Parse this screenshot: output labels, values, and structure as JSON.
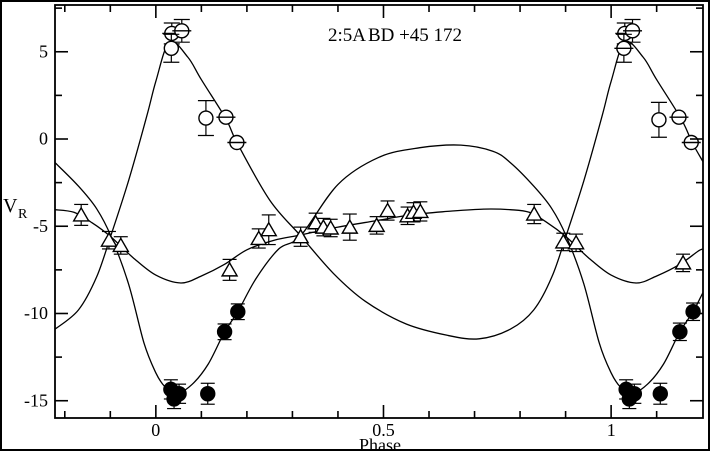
{
  "window": {
    "background": "#ffffff",
    "border_color": "#000000"
  },
  "chart_data": {
    "type": "scatter",
    "title_system": "2:5A",
    "title_star": "BD +45 172",
    "xlabel": "Phase",
    "ylabel_main": "V",
    "ylabel_sub": "R",
    "xlim": [
      -0.2215,
      1.2018
    ],
    "ylim": [
      -15.99,
      7.68
    ],
    "x_major_ticks": [
      0,
      0.5,
      1
    ],
    "x_tick_labels": [
      "0",
      "0.5",
      "1"
    ],
    "x_minor_step": 0.1,
    "y_major_ticks": [
      5,
      0,
      -5,
      -10,
      -15
    ],
    "y_tick_labels": [
      "5",
      "0",
      "-5",
      "-10",
      "-15"
    ],
    "y_minor_ticks": [
      7.5,
      2.5,
      -2.5,
      -7.5,
      -12.5
    ],
    "grid": false,
    "legend": "none",
    "colors": {
      "ink": "#000000",
      "background": "#ffffff"
    },
    "series": [
      {
        "name": "primary-component",
        "marker": "open-circle",
        "points_format": [
          "phase",
          "velocity",
          "error",
          "barred"
        ],
        "points": [
          [
            0.035,
            6.05,
            0.6,
            1
          ],
          [
            0.057,
            6.2,
            0.65,
            1
          ],
          [
            0.034,
            5.2,
            0.8,
            0
          ],
          [
            0.11,
            1.2,
            1.0,
            0
          ],
          [
            0.154,
            1.25,
            0,
            1
          ],
          [
            0.178,
            -0.2,
            0,
            1
          ],
          [
            1.03,
            6.05,
            0.6,
            1
          ],
          [
            1.047,
            6.2,
            0.65,
            1
          ],
          [
            1.028,
            5.2,
            0.8,
            1
          ],
          [
            1.105,
            1.1,
            1.0,
            0
          ],
          [
            1.149,
            1.25,
            0,
            1
          ],
          [
            1.176,
            -0.2,
            0,
            1
          ]
        ]
      },
      {
        "name": "secondary-component",
        "marker": "filled-circle",
        "points_format": [
          "phase",
          "velocity",
          "error"
        ],
        "points": [
          [
            0.033,
            -14.35,
            0.55
          ],
          [
            0.04,
            -14.9,
            0.55
          ],
          [
            0.051,
            -14.6,
            0.55
          ],
          [
            0.114,
            -14.6,
            0.6
          ],
          [
            0.151,
            -11.05,
            0.45
          ],
          [
            0.18,
            -9.9,
            0.45
          ],
          [
            1.033,
            -14.35,
            0.55
          ],
          [
            1.04,
            -14.9,
            0.55
          ],
          [
            1.051,
            -14.6,
            0.55
          ],
          [
            1.108,
            -14.6,
            0.6
          ],
          [
            1.151,
            -11.05,
            0.5
          ],
          [
            1.18,
            -9.9,
            0.5
          ]
        ]
      },
      {
        "name": "tertiary-component",
        "marker": "open-triangle",
        "points_format": [
          "phase",
          "velocity",
          "error"
        ],
        "points": [
          [
            -0.164,
            -4.35,
            0.6
          ],
          [
            -0.103,
            -5.8,
            0.5
          ],
          [
            -0.077,
            -6.1,
            0.5
          ],
          [
            0.162,
            -7.5,
            0.6
          ],
          [
            0.226,
            -5.7,
            0.55
          ],
          [
            0.248,
            -5.2,
            0.85
          ],
          [
            0.318,
            -5.6,
            0.55
          ],
          [
            0.351,
            -4.8,
            0.55
          ],
          [
            0.368,
            -5.05,
            0.5
          ],
          [
            0.384,
            -5.1,
            0.5
          ],
          [
            0.426,
            -5.05,
            0.75
          ],
          [
            0.485,
            -4.95,
            0.5
          ],
          [
            0.509,
            -4.1,
            0.55
          ],
          [
            0.553,
            -4.4,
            0.5
          ],
          [
            0.566,
            -4.2,
            0.55
          ],
          [
            0.581,
            -4.15,
            0.55
          ],
          [
            0.831,
            -4.3,
            0.55
          ],
          [
            0.895,
            -5.9,
            0.5
          ],
          [
            0.923,
            -5.95,
            0.5
          ],
          [
            1.158,
            -7.1,
            0.5
          ]
        ]
      }
    ],
    "curves": [
      {
        "name": "primary-fit",
        "points": [
          [
            -0.2215,
            -10.9
          ],
          [
            -0.17,
            -9.8
          ],
          [
            -0.13,
            -7.9
          ],
          [
            -0.099,
            -5.55
          ],
          [
            -0.06,
            -2.4
          ],
          [
            -0.02,
            1.3
          ],
          [
            0.0,
            3.3
          ],
          [
            0.03,
            5.55
          ],
          [
            0.07,
            4.7
          ],
          [
            0.1,
            3.4
          ],
          [
            0.154,
            1.15
          ],
          [
            0.178,
            -0.2
          ],
          [
            0.25,
            -3.5
          ],
          [
            0.318,
            -5.55
          ],
          [
            0.39,
            -7.7
          ],
          [
            0.46,
            -9.3
          ],
          [
            0.55,
            -10.6
          ],
          [
            0.64,
            -11.25
          ],
          [
            0.71,
            -11.45
          ],
          [
            0.7785,
            -10.9
          ],
          [
            0.83,
            -9.8
          ],
          [
            0.87,
            -7.9
          ],
          [
            0.901,
            -5.55
          ],
          [
            0.94,
            -2.4
          ],
          [
            0.98,
            1.3
          ],
          [
            1.0,
            3.3
          ],
          [
            1.03,
            5.55
          ],
          [
            1.07,
            4.7
          ],
          [
            1.1,
            3.4
          ],
          [
            1.154,
            1.15
          ],
          [
            1.178,
            -0.2
          ],
          [
            1.2018,
            -1.3
          ]
        ]
      },
      {
        "name": "secondary-fit",
        "points": [
          [
            -0.2215,
            -1.35
          ],
          [
            -0.17,
            -2.7
          ],
          [
            -0.13,
            -4.0
          ],
          [
            -0.099,
            -5.55
          ],
          [
            -0.06,
            -8.3
          ],
          [
            -0.026,
            -11.7
          ],
          [
            0.0,
            -13.4
          ],
          [
            0.02,
            -14.2
          ],
          [
            0.045,
            -14.6
          ],
          [
            0.08,
            -14.05
          ],
          [
            0.115,
            -12.9
          ],
          [
            0.151,
            -11.05
          ],
          [
            0.18,
            -9.9
          ],
          [
            0.22,
            -8.0
          ],
          [
            0.27,
            -6.3
          ],
          [
            0.318,
            -5.55
          ],
          [
            0.4,
            -2.6
          ],
          [
            0.49,
            -1.05
          ],
          [
            0.58,
            -0.5
          ],
          [
            0.67,
            -0.35
          ],
          [
            0.74,
            -0.7
          ],
          [
            0.7785,
            -1.35
          ],
          [
            0.83,
            -2.7
          ],
          [
            0.87,
            -4.0
          ],
          [
            0.901,
            -5.55
          ],
          [
            0.94,
            -8.3
          ],
          [
            0.974,
            -11.7
          ],
          [
            1.0,
            -13.4
          ],
          [
            1.02,
            -14.2
          ],
          [
            1.045,
            -14.6
          ],
          [
            1.08,
            -14.05
          ],
          [
            1.115,
            -12.9
          ],
          [
            1.151,
            -11.05
          ],
          [
            1.18,
            -9.9
          ],
          [
            1.2018,
            -8.8
          ]
        ]
      },
      {
        "name": "tertiary-fit",
        "points": [
          [
            -0.2215,
            -4.05
          ],
          [
            -0.18,
            -4.2
          ],
          [
            -0.14,
            -4.8
          ],
          [
            -0.099,
            -5.6
          ],
          [
            -0.05,
            -6.8
          ],
          [
            0.0,
            -7.8
          ],
          [
            0.055,
            -8.25
          ],
          [
            0.1,
            -7.85
          ],
          [
            0.15,
            -7.2
          ],
          [
            0.2,
            -6.35
          ],
          [
            0.26,
            -5.8
          ],
          [
            0.318,
            -5.5
          ],
          [
            0.4,
            -5.05
          ],
          [
            0.48,
            -4.7
          ],
          [
            0.56,
            -4.35
          ],
          [
            0.64,
            -4.15
          ],
          [
            0.72,
            -4.02
          ],
          [
            0.7785,
            -4.05
          ],
          [
            0.82,
            -4.2
          ],
          [
            0.86,
            -4.8
          ],
          [
            0.901,
            -5.6
          ],
          [
            0.95,
            -6.8
          ],
          [
            1.0,
            -7.8
          ],
          [
            1.055,
            -8.25
          ],
          [
            1.1,
            -7.85
          ],
          [
            1.15,
            -7.2
          ],
          [
            1.19,
            -6.45
          ],
          [
            1.2018,
            -6.3
          ]
        ]
      }
    ]
  }
}
